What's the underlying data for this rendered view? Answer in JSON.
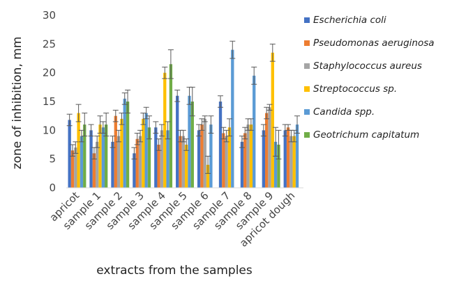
{
  "chart_data": {
    "type": "bar",
    "title": "",
    "xlabel": "extracts from the samples",
    "ylabel": "zone of inhibition, mm",
    "ylim": [
      0,
      30
    ],
    "yticks": [
      0,
      5,
      10,
      15,
      20,
      25,
      30
    ],
    "grid": false,
    "legend_position": "right",
    "error_bars": true,
    "categories": [
      "apricot",
      "sample 1",
      "sample 2",
      "sample 3",
      "sample 4",
      "sample 5",
      "sample 6",
      "sample 7",
      "sample 8",
      "sample 9",
      "apricot dough"
    ],
    "series": [
      {
        "name": "Escherichia coli",
        "color": "#4472C4",
        "values": [
          11.8,
          10.0,
          8.0,
          6.0,
          10.5,
          16.0,
          10.0,
          15.0,
          8.0,
          10.0,
          10.0
        ],
        "errors": [
          1.0,
          1.0,
          1.0,
          1.0,
          1.0,
          1.0,
          1.0,
          1.0,
          1.0,
          1.0,
          1.0
        ]
      },
      {
        "name": "Pseudomonas aeruginosa",
        "color": "#ED7D31",
        "values": [
          6.5,
          6.0,
          12.5,
          8.5,
          7.5,
          9.0,
          11.0,
          9.5,
          9.5,
          13.0,
          10.5
        ],
        "errors": [
          1.0,
          1.0,
          1.0,
          1.0,
          1.0,
          1.0,
          1.0,
          1.0,
          1.0,
          1.0,
          0.5
        ]
      },
      {
        "name": "Staphylococcus aureus",
        "color": "#A5A5A5",
        "values": [
          7.0,
          8.0,
          9.0,
          9.0,
          10.0,
          9.0,
          12.0,
          9.0,
          11.0,
          14.0,
          9.0
        ],
        "errors": [
          1.0,
          1.0,
          1.0,
          1.0,
          1.0,
          1.0,
          0.5,
          1.0,
          1.0,
          0.5,
          1.0
        ]
      },
      {
        "name": "Streptococcus sp.",
        "color": "#FFC000",
        "values": [
          13.0,
          11.0,
          12.0,
          12.0,
          20.0,
          7.5,
          4.0,
          10.5,
          11.0,
          23.5,
          9.0
        ],
        "errors": [
          1.5,
          1.5,
          1.0,
          1.0,
          1.0,
          1.0,
          1.5,
          1.5,
          1.0,
          1.5,
          1.0
        ]
      },
      {
        "name": "Candida spp.",
        "color": "#5B9BD5",
        "values": [
          9.0,
          10.5,
          15.5,
          13.0,
          10.0,
          16.0,
          11.0,
          24.0,
          19.5,
          8.0,
          11.0
        ],
        "errors": [
          1.0,
          1.0,
          1.0,
          1.0,
          1.5,
          1.5,
          1.5,
          1.5,
          1.5,
          2.5,
          1.5
        ]
      },
      {
        "name": "Geotrichum capitatum",
        "color": "#70AD47",
        "values": [
          11.0,
          11.0,
          15.0,
          10.5,
          21.5,
          15.0,
          0.0,
          0.0,
          0.0,
          7.5,
          0.0
        ],
        "errors": [
          2.0,
          2.0,
          2.0,
          2.0,
          2.5,
          2.5,
          0.0,
          0.0,
          0.0,
          2.5,
          0.0
        ]
      }
    ]
  }
}
